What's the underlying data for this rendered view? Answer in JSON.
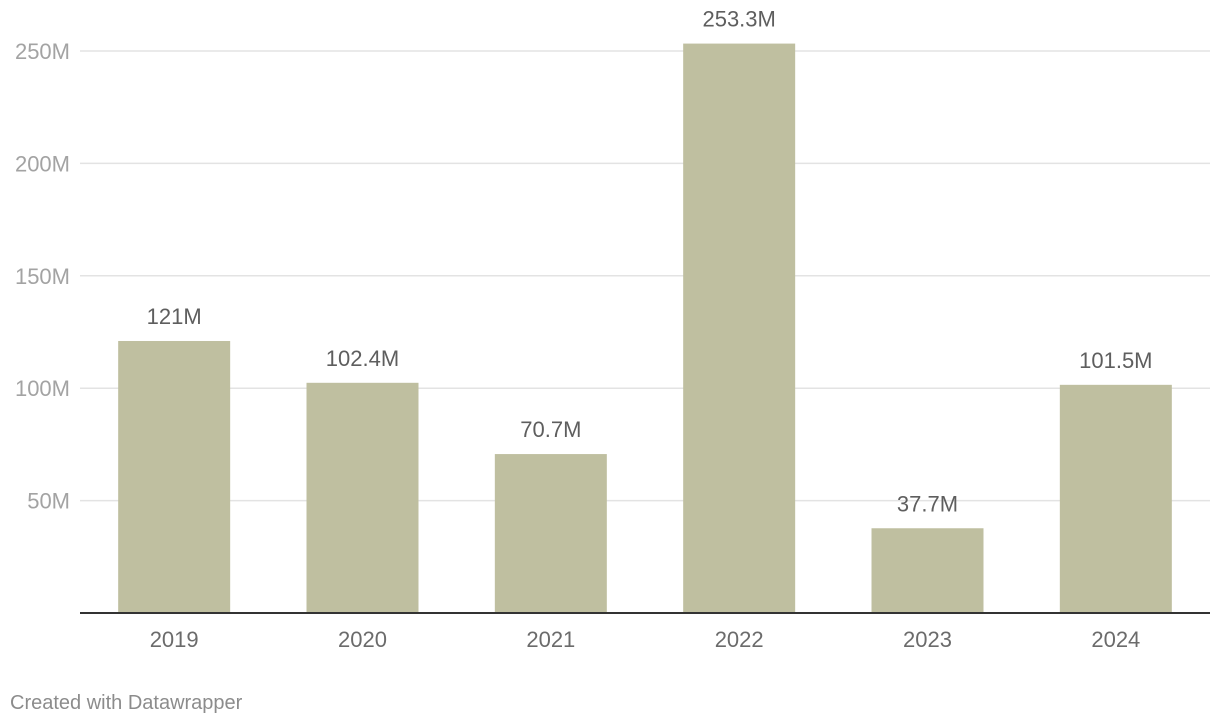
{
  "chart_data": {
    "type": "bar",
    "categories": [
      "2019",
      "2020",
      "2021",
      "2022",
      "2023",
      "2024"
    ],
    "values": [
      121,
      102.4,
      70.7,
      253.3,
      37.7,
      101.5
    ],
    "value_labels": [
      "121M",
      "102.4M",
      "70.7M",
      "253.3M",
      "37.7M",
      "101.5M"
    ],
    "yticks": [
      50,
      100,
      150,
      200,
      250
    ],
    "ytick_labels": [
      "50M",
      "100M",
      "150M",
      "200M",
      "250M"
    ],
    "ylim": [
      0,
      250
    ],
    "grid": true,
    "bar_color": "#bfbfa0",
    "grid_color": "#e3e3e3",
    "axis_color": "#333333"
  },
  "footer": {
    "credit": "Created with Datawrapper"
  }
}
